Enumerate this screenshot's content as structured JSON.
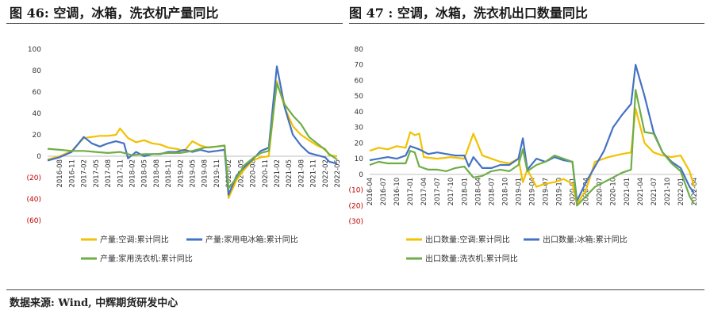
{
  "left_title": "图 46: 空调，冰箱，洗衣机产量同比",
  "right_title": "图 47 : 空调，冰箱，洗衣机出口数量同比",
  "source": "数据来源: Wind, 中辉期货研发中心",
  "chart_data": [
    {
      "type": "line",
      "yticks": [
        "100",
        "80",
        "60",
        "40",
        "20",
        "0",
        "(20)",
        "(40)",
        "(60)"
      ],
      "ylim": [
        -60,
        100
      ],
      "xticks": [
        "2016-08",
        "2016-11",
        "2017-02",
        "2017-05",
        "2017-08",
        "2017-11",
        "2018-02",
        "2018-05",
        "2018-08",
        "2018-11",
        "2019-02",
        "2019-05",
        "2019-08",
        "2019-11",
        "2020-02",
        "2020-05",
        "2020-08",
        "2020-11",
        "2021-02",
        "2021-05",
        "2021-08",
        "2021-11",
        "2022-02",
        "2022-05"
      ],
      "x_start": "2016-05",
      "x_end": "2022-05",
      "series": [
        {
          "name": "产量:空调:累计同比",
          "color": "#f2c100",
          "points": [
            [
              "2016-05",
              -3
            ],
            [
              "2016-08",
              0
            ],
            [
              "2016-11",
              5
            ],
            [
              "2017-02",
              17
            ],
            [
              "2017-04",
              18
            ],
            [
              "2017-06",
              19
            ],
            [
              "2017-08",
              19
            ],
            [
              "2017-10",
              20
            ],
            [
              "2017-11",
              26
            ],
            [
              "2018-01",
              17
            ],
            [
              "2018-03",
              13
            ],
            [
              "2018-05",
              15
            ],
            [
              "2018-07",
              12
            ],
            [
              "2018-09",
              11
            ],
            [
              "2018-11",
              8
            ],
            [
              "2019-01",
              7
            ],
            [
              "2019-03",
              5
            ],
            [
              "2019-05",
              14
            ],
            [
              "2019-07",
              10
            ],
            [
              "2019-09",
              8
            ],
            [
              "2019-11",
              9
            ],
            [
              "2020-01",
              10
            ],
            [
              "2020-02",
              -39
            ],
            [
              "2020-04",
              -22
            ],
            [
              "2020-06",
              -12
            ],
            [
              "2020-08",
              -4
            ],
            [
              "2020-10",
              -1
            ],
            [
              "2020-12",
              0
            ],
            [
              "2021-02",
              70
            ],
            [
              "2021-04",
              45
            ],
            [
              "2021-06",
              28
            ],
            [
              "2021-08",
              20
            ],
            [
              "2021-10",
              15
            ],
            [
              "2021-12",
              10
            ],
            [
              "2022-02",
              7
            ],
            [
              "2022-03",
              1
            ],
            [
              "2022-05",
              0
            ]
          ]
        },
        {
          "name": "产量:家用电冰箱:累计同比",
          "color": "#4472c4",
          "points": [
            [
              "2016-05",
              -4
            ],
            [
              "2016-08",
              -1
            ],
            [
              "2016-11",
              4
            ],
            [
              "2017-02",
              18
            ],
            [
              "2017-04",
              12
            ],
            [
              "2017-06",
              9
            ],
            [
              "2017-08",
              12
            ],
            [
              "2017-10",
              14
            ],
            [
              "2017-12",
              12
            ],
            [
              "2018-01",
              -2
            ],
            [
              "2018-03",
              4
            ],
            [
              "2018-05",
              0
            ],
            [
              "2018-07",
              2
            ],
            [
              "2018-09",
              2
            ],
            [
              "2018-11",
              4
            ],
            [
              "2019-01",
              4
            ],
            [
              "2019-03",
              6
            ],
            [
              "2019-05",
              4
            ],
            [
              "2019-07",
              6
            ],
            [
              "2019-09",
              4
            ],
            [
              "2019-11",
              5
            ],
            [
              "2020-01",
              6
            ],
            [
              "2020-02",
              -36
            ],
            [
              "2020-04",
              -18
            ],
            [
              "2020-06",
              -10
            ],
            [
              "2020-08",
              -3
            ],
            [
              "2020-10",
              5
            ],
            [
              "2020-12",
              8
            ],
            [
              "2021-02",
              84
            ],
            [
              "2021-04",
              45
            ],
            [
              "2021-06",
              20
            ],
            [
              "2021-08",
              10
            ],
            [
              "2021-10",
              3
            ],
            [
              "2021-12",
              1
            ],
            [
              "2022-02",
              -1
            ],
            [
              "2022-03",
              -5
            ],
            [
              "2022-05",
              -7
            ]
          ]
        },
        {
          "name": "产量:家用洗衣机:累计同比",
          "color": "#70ad47",
          "points": [
            [
              "2016-05",
              7
            ],
            [
              "2016-08",
              6
            ],
            [
              "2016-11",
              5
            ],
            [
              "2017-02",
              5
            ],
            [
              "2017-05",
              4
            ],
            [
              "2017-08",
              3
            ],
            [
              "2017-11",
              4
            ],
            [
              "2018-02",
              1
            ],
            [
              "2018-05",
              2
            ],
            [
              "2018-08",
              2
            ],
            [
              "2018-11",
              3
            ],
            [
              "2019-02",
              3
            ],
            [
              "2019-05",
              5
            ],
            [
              "2019-08",
              8
            ],
            [
              "2019-11",
              9
            ],
            [
              "2020-01",
              10
            ],
            [
              "2020-02",
              -30
            ],
            [
              "2020-04",
              -20
            ],
            [
              "2020-06",
              -8
            ],
            [
              "2020-08",
              -2
            ],
            [
              "2020-10",
              3
            ],
            [
              "2020-12",
              5
            ],
            [
              "2021-02",
              68
            ],
            [
              "2021-04",
              48
            ],
            [
              "2021-06",
              38
            ],
            [
              "2021-08",
              30
            ],
            [
              "2021-10",
              18
            ],
            [
              "2021-12",
              12
            ],
            [
              "2022-02",
              6
            ],
            [
              "2022-03",
              2
            ],
            [
              "2022-05",
              -3
            ]
          ]
        }
      ]
    },
    {
      "type": "line",
      "yticks": [
        "80",
        "70",
        "60",
        "50",
        "40",
        "30",
        "20",
        "10",
        "0",
        "(10)",
        "(20)",
        "(30)"
      ],
      "ylim": [
        -30,
        80
      ],
      "xticks": [
        "2016-04",
        "2016-07",
        "2016-10",
        "2017-01",
        "2017-04",
        "2017-07",
        "2017-10",
        "2018-01",
        "2018-04",
        "2018-07",
        "2018-10",
        "2019-01",
        "2019-04",
        "2019-07",
        "2019-10",
        "2020-01",
        "2020-04",
        "2020-07",
        "2020-10",
        "2021-01",
        "2021-04",
        "2021-07",
        "2021-10",
        "2022-01",
        "2022-04"
      ],
      "x_start": "2016-04",
      "x_end": "2022-04",
      "series": [
        {
          "name": "出口数量:空调:累计同比",
          "color": "#f2c100",
          "points": [
            [
              "2016-04",
              15
            ],
            [
              "2016-06",
              17
            ],
            [
              "2016-08",
              16
            ],
            [
              "2016-10",
              18
            ],
            [
              "2016-12",
              17
            ],
            [
              "2017-01",
              27
            ],
            [
              "2017-02",
              25
            ],
            [
              "2017-03",
              26
            ],
            [
              "2017-04",
              11
            ],
            [
              "2017-07",
              10
            ],
            [
              "2017-10",
              11
            ],
            [
              "2018-01",
              10
            ],
            [
              "2018-03",
              26
            ],
            [
              "2018-05",
              12
            ],
            [
              "2018-07",
              10
            ],
            [
              "2018-09",
              8
            ],
            [
              "2018-11",
              7
            ],
            [
              "2019-01",
              10
            ],
            [
              "2019-02",
              -5
            ],
            [
              "2019-03",
              3
            ],
            [
              "2019-05",
              -8
            ],
            [
              "2019-07",
              -6
            ],
            [
              "2019-09",
              -5
            ],
            [
              "2019-11",
              -3
            ],
            [
              "2020-01",
              -6
            ],
            [
              "2020-02",
              -19
            ],
            [
              "2020-04",
              -10
            ],
            [
              "2020-06",
              8
            ],
            [
              "2020-09",
              11
            ],
            [
              "2020-12",
              13
            ],
            [
              "2021-02",
              14
            ],
            [
              "2021-03",
              42
            ],
            [
              "2021-05",
              20
            ],
            [
              "2021-07",
              14
            ],
            [
              "2021-09",
              12
            ],
            [
              "2021-11",
              11
            ],
            [
              "2022-01",
              12
            ],
            [
              "2022-03",
              2
            ],
            [
              "2022-04",
              -8
            ]
          ]
        },
        {
          "name": "出口数量:冰箱:累计同比",
          "color": "#4472c4",
          "points": [
            [
              "2016-04",
              9
            ],
            [
              "2016-06",
              10
            ],
            [
              "2016-08",
              11
            ],
            [
              "2016-10",
              10
            ],
            [
              "2016-12",
              12
            ],
            [
              "2017-01",
              18
            ],
            [
              "2017-03",
              16
            ],
            [
              "2017-05",
              13
            ],
            [
              "2017-07",
              14
            ],
            [
              "2017-09",
              13
            ],
            [
              "2017-11",
              12
            ],
            [
              "2018-01",
              12
            ],
            [
              "2018-02",
              5
            ],
            [
              "2018-03",
              11
            ],
            [
              "2018-05",
              4
            ],
            [
              "2018-07",
              4
            ],
            [
              "2018-09",
              6
            ],
            [
              "2018-11",
              6
            ],
            [
              "2019-01",
              10
            ],
            [
              "2019-02",
              23
            ],
            [
              "2019-03",
              3
            ],
            [
              "2019-05",
              10
            ],
            [
              "2019-07",
              8
            ],
            [
              "2019-09",
              11
            ],
            [
              "2019-11",
              9
            ],
            [
              "2020-01",
              8
            ],
            [
              "2020-02",
              -17
            ],
            [
              "2020-04",
              -5
            ],
            [
              "2020-06",
              5
            ],
            [
              "2020-08",
              15
            ],
            [
              "2020-10",
              30
            ],
            [
              "2020-12",
              38
            ],
            [
              "2021-02",
              45
            ],
            [
              "2021-03",
              70
            ],
            [
              "2021-05",
              50
            ],
            [
              "2021-07",
              27
            ],
            [
              "2021-09",
              14
            ],
            [
              "2021-11",
              8
            ],
            [
              "2022-01",
              4
            ],
            [
              "2022-03",
              -8
            ],
            [
              "2022-04",
              -12
            ]
          ]
        },
        {
          "name": "出口数量:洗衣机:累计同比",
          "color": "#70ad47",
          "points": [
            [
              "2016-04",
              6
            ],
            [
              "2016-06",
              8
            ],
            [
              "2016-08",
              7
            ],
            [
              "2016-10",
              7
            ],
            [
              "2016-12",
              7
            ],
            [
              "2017-01",
              15
            ],
            [
              "2017-02",
              14
            ],
            [
              "2017-03",
              5
            ],
            [
              "2017-05",
              3
            ],
            [
              "2017-07",
              3
            ],
            [
              "2017-09",
              2
            ],
            [
              "2017-11",
              4
            ],
            [
              "2018-01",
              5
            ],
            [
              "2018-03",
              -2
            ],
            [
              "2018-05",
              -1
            ],
            [
              "2018-07",
              2
            ],
            [
              "2018-09",
              3
            ],
            [
              "2018-11",
              2
            ],
            [
              "2019-01",
              6
            ],
            [
              "2019-02",
              16
            ],
            [
              "2019-03",
              2
            ],
            [
              "2019-05",
              6
            ],
            [
              "2019-07",
              8
            ],
            [
              "2019-09",
              12
            ],
            [
              "2019-11",
              10
            ],
            [
              "2020-01",
              8
            ],
            [
              "2020-02",
              -20
            ],
            [
              "2020-04",
              -14
            ],
            [
              "2020-06",
              -8
            ],
            [
              "2020-08",
              -5
            ],
            [
              "2020-10",
              -2
            ],
            [
              "2020-12",
              1
            ],
            [
              "2021-02",
              3
            ],
            [
              "2021-03",
              54
            ],
            [
              "2021-05",
              27
            ],
            [
              "2021-07",
              26
            ],
            [
              "2021-09",
              14
            ],
            [
              "2021-11",
              7
            ],
            [
              "2022-01",
              2
            ],
            [
              "2022-03",
              -14
            ],
            [
              "2022-04",
              -19
            ]
          ]
        }
      ]
    }
  ]
}
